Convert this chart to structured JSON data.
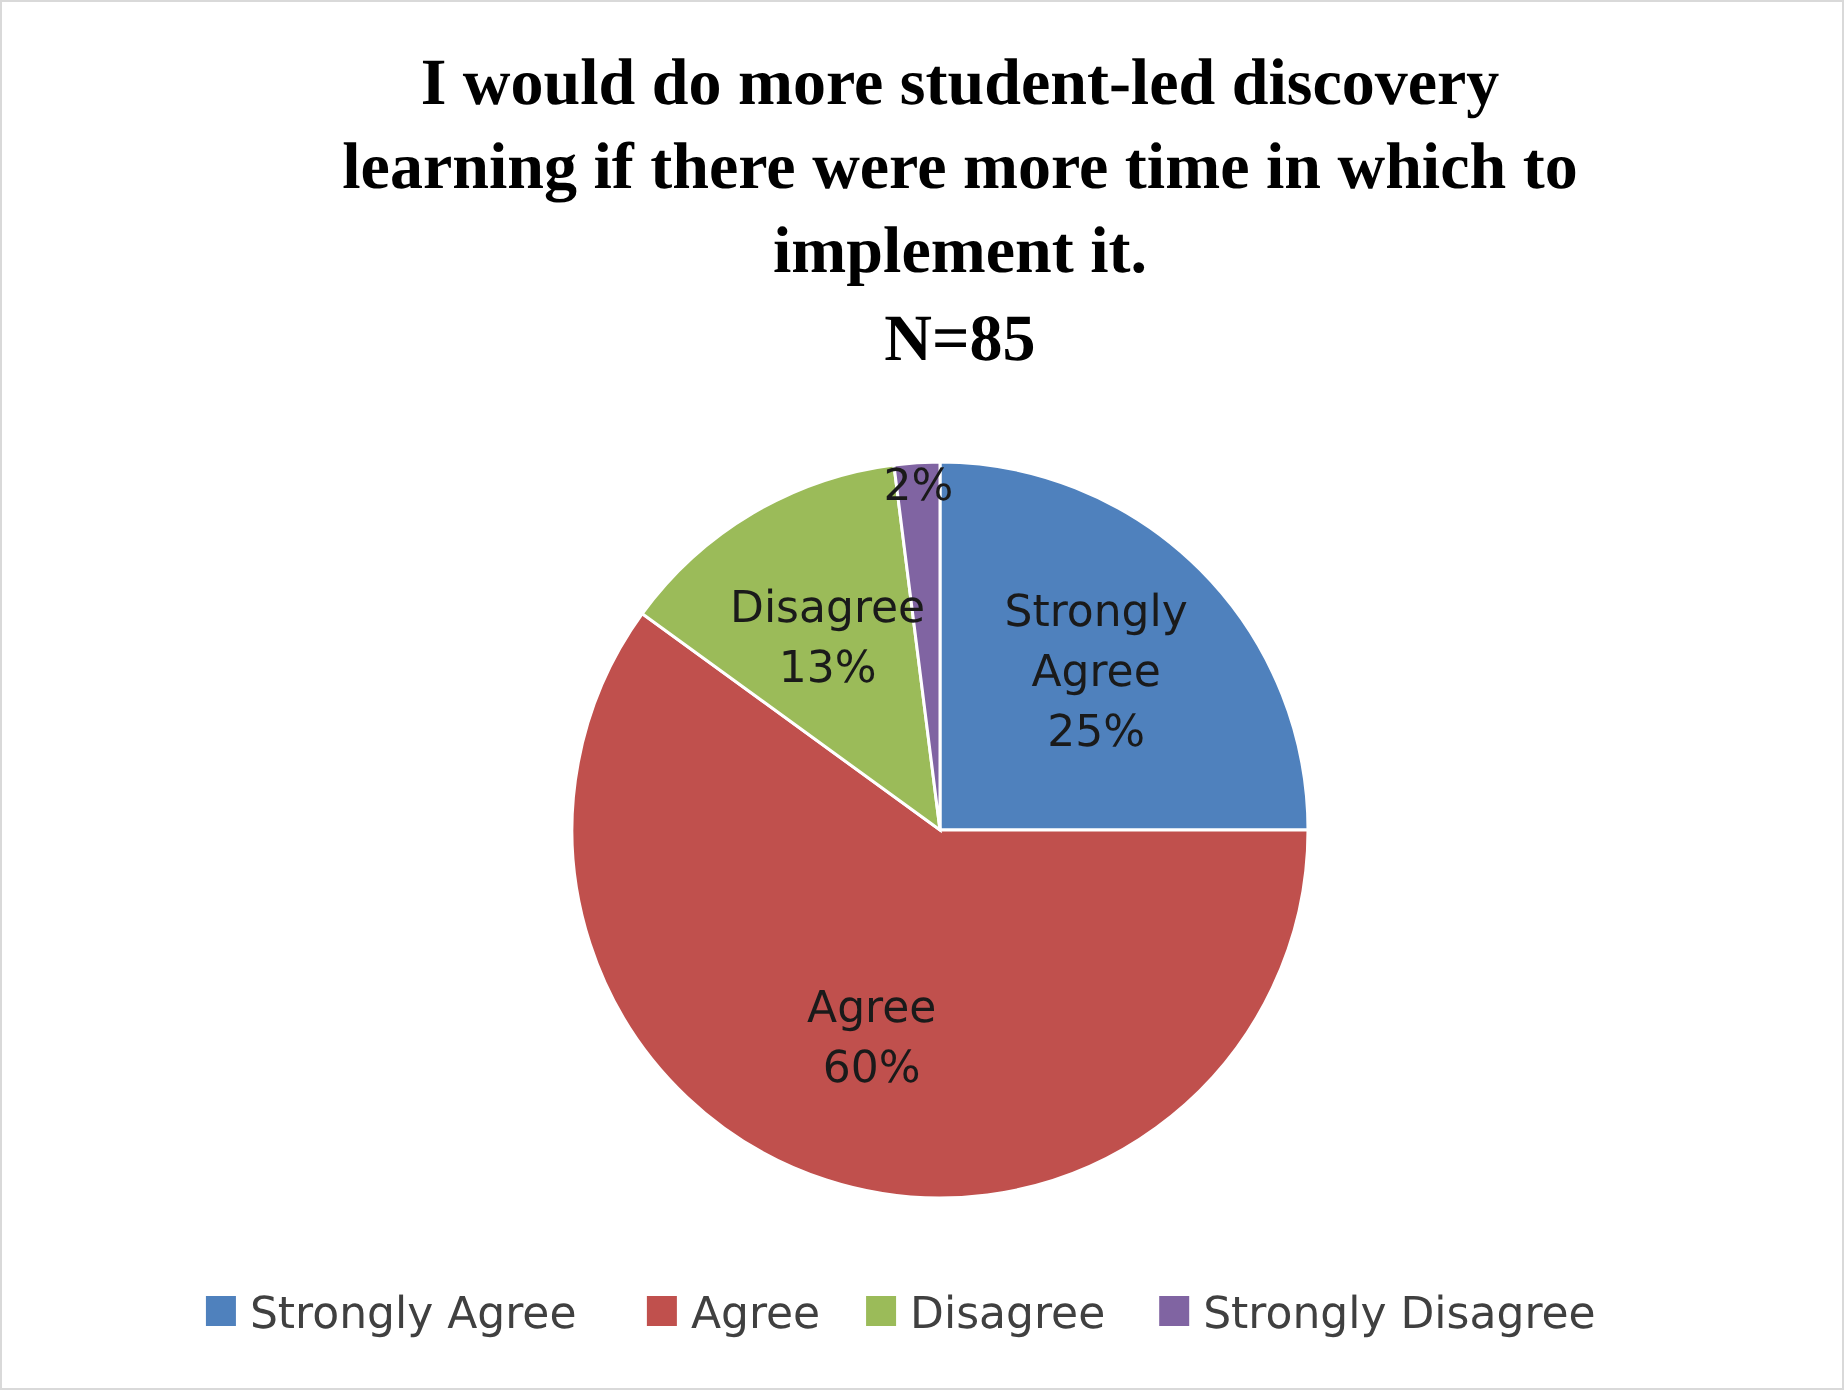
{
  "chart_data": {
    "type": "pie",
    "title": "I would do more student-led discovery learning if there were more time in which to implement it.",
    "subtitle": "N=85",
    "categories": [
      "Strongly Agree",
      "Agree",
      "Disagree",
      "Strongly Disagree"
    ],
    "values": [
      25,
      60,
      13,
      2
    ],
    "colors": [
      "#4f81bd",
      "#c0504d",
      "#9bbb59",
      "#8064a2"
    ],
    "value_labels": [
      "Strongly\nAgree\n25%",
      "Agree\n60%",
      "Disagree\n13%",
      "2%"
    ],
    "legend": "bottom"
  }
}
